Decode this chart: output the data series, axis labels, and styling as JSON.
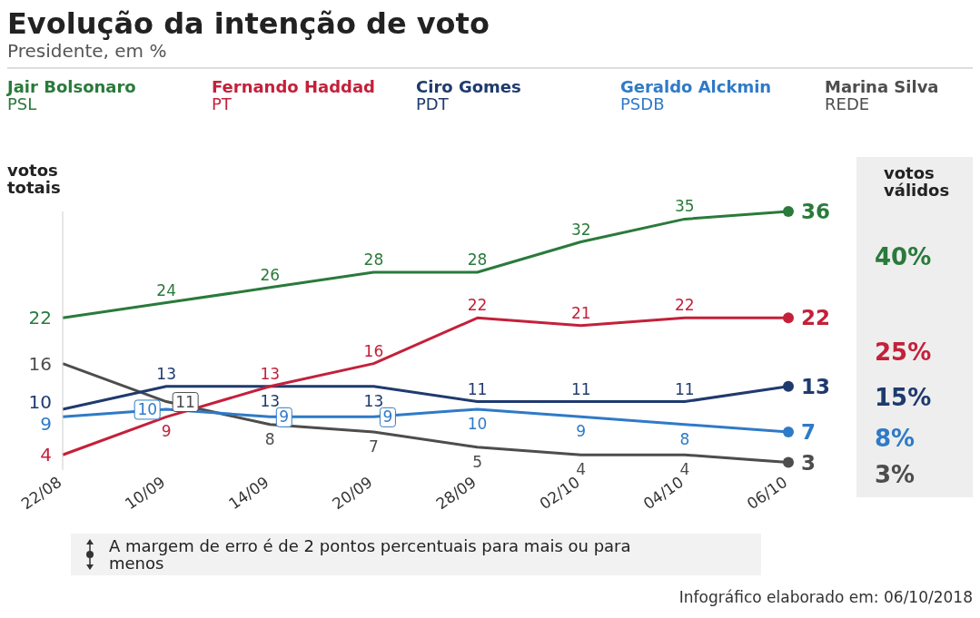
{
  "chart_data": {
    "type": "line",
    "title": "Evolução da intenção de voto",
    "subtitle": "Presidente, em %",
    "ylabel": "votos totais",
    "categories": [
      "22/08",
      "10/09",
      "14/09",
      "20/09",
      "28/09",
      "02/10",
      "04/10",
      "06/10"
    ],
    "data_labels": true,
    "legend": "top",
    "series": [
      {
        "name": "Jair Bolsonaro\nPSL",
        "color": "#2a7a3b",
        "values": [
          22,
          24,
          26,
          28,
          28,
          32,
          35,
          36
        ]
      },
      {
        "name": "Fernando Haddad\nPT",
        "color": "#c4203a",
        "values": [
          4,
          9,
          13,
          16,
          22,
          21,
          22,
          22
        ]
      },
      {
        "name": "Ciro Gomes\nPDT",
        "color": "#1f3a6e",
        "values": [
          10,
          13,
          13,
          13,
          11,
          11,
          11,
          13
        ]
      },
      {
        "name": "Geraldo Alckmin\nPSDB",
        "color": "#2f7ac7",
        "values": [
          9,
          10,
          9,
          9,
          10,
          9,
          8,
          7
        ]
      },
      {
        "name": "Marina Silva\nREDE",
        "color": "#4d4d4d",
        "values": [
          16,
          11,
          8,
          7,
          5,
          4,
          4,
          3
        ]
      }
    ],
    "annotations": [
      "votos válidos",
      "40%",
      "25%",
      "15%",
      "8%",
      "3%",
      "A margem de erro é de 2 pontos percentuais para mais ou para menos",
      "Infográfico elaborado em: 06/10/2018"
    ]
  }
}
